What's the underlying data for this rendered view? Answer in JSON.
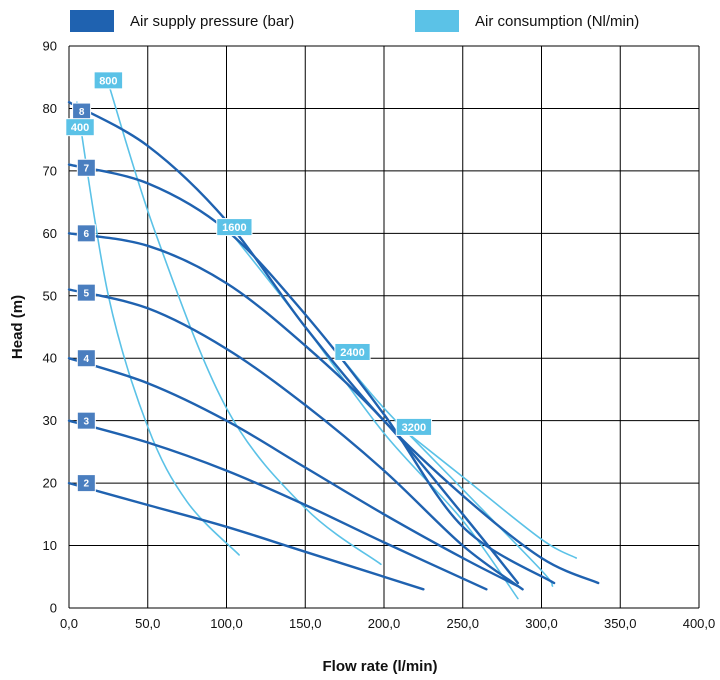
{
  "legend": {
    "pressure_label": "Air supply pressure (bar)",
    "consumption_label": "Air consumption (Nl/min)"
  },
  "colors": {
    "pressure": "#1f62b0",
    "consumption": "#5bc2e7",
    "pressure_tag": "#4a7ebf",
    "grid": "#000000"
  },
  "chart_data": {
    "type": "line",
    "xlabel": "Flow rate (l/min)",
    "ylabel": "Head (m)",
    "xlim": [
      0,
      400
    ],
    "ylim": [
      0,
      90
    ],
    "xticks": [
      0,
      50,
      100,
      150,
      200,
      250,
      300,
      350,
      400
    ],
    "xtick_labels": [
      "0,0",
      "50,0",
      "100,0",
      "150,0",
      "200,0",
      "250,0",
      "300,0",
      "350,0",
      "400,0"
    ],
    "yticks": [
      0,
      10,
      20,
      30,
      40,
      50,
      60,
      70,
      80,
      90
    ],
    "ytick_labels": [
      "0",
      "10",
      "20",
      "30",
      "40",
      "50",
      "60",
      "70",
      "80",
      "90"
    ],
    "grid": true,
    "legend_position": "top",
    "pressure_series": [
      {
        "label": "2",
        "points": [
          [
            0,
            20
          ],
          [
            50,
            16.5
          ],
          [
            100,
            13
          ],
          [
            150,
            9
          ],
          [
            225,
            3
          ]
        ]
      },
      {
        "label": "3",
        "points": [
          [
            0,
            30
          ],
          [
            50,
            26.5
          ],
          [
            100,
            22
          ],
          [
            150,
            16.5
          ],
          [
            200,
            10.5
          ],
          [
            265,
            3
          ]
        ]
      },
      {
        "label": "4",
        "points": [
          [
            0,
            40
          ],
          [
            50,
            36
          ],
          [
            100,
            30
          ],
          [
            150,
            22.5
          ],
          [
            200,
            15
          ],
          [
            250,
            8
          ],
          [
            285,
            3.5
          ]
        ]
      },
      {
        "label": "5",
        "points": [
          [
            0,
            51
          ],
          [
            50,
            48
          ],
          [
            100,
            41.5
          ],
          [
            150,
            32.5
          ],
          [
            200,
            22
          ],
          [
            250,
            10
          ],
          [
            288,
            3
          ]
        ]
      },
      {
        "label": "6",
        "points": [
          [
            0,
            60
          ],
          [
            50,
            58
          ],
          [
            100,
            52
          ],
          [
            150,
            42
          ],
          [
            200,
            30
          ],
          [
            250,
            15
          ],
          [
            285,
            4
          ]
        ]
      },
      {
        "label": "7",
        "points": [
          [
            0,
            71
          ],
          [
            50,
            68
          ],
          [
            100,
            60.5
          ],
          [
            150,
            47
          ],
          [
            200,
            31
          ],
          [
            250,
            13
          ],
          [
            308,
            4
          ]
        ]
      },
      {
        "label": "8",
        "points": [
          [
            0,
            81
          ],
          [
            50,
            74
          ],
          [
            100,
            62
          ],
          [
            150,
            45
          ],
          [
            200,
            30
          ],
          [
            250,
            18
          ],
          [
            300,
            8
          ],
          [
            336,
            4
          ]
        ]
      }
    ],
    "consumption_series": [
      {
        "label": "400",
        "points": [
          [
            5,
            81
          ],
          [
            25,
            50
          ],
          [
            50,
            29
          ],
          [
            75,
            17
          ],
          [
            108,
            8.5
          ]
        ]
      },
      {
        "label": "800",
        "points": [
          [
            25,
            84
          ],
          [
            55,
            60
          ],
          [
            100,
            32
          ],
          [
            150,
            16
          ],
          [
            198,
            7
          ]
        ]
      },
      {
        "label": "1600",
        "points": [
          [
            100,
            61
          ],
          [
            150,
            45
          ],
          [
            200,
            28
          ],
          [
            250,
            14
          ],
          [
            285,
            1.5
          ]
        ]
      },
      {
        "label": "2400",
        "points": [
          [
            170,
            41
          ],
          [
            200,
            32
          ],
          [
            250,
            19
          ],
          [
            300,
            6
          ],
          [
            307,
            3.5
          ]
        ]
      },
      {
        "label": "3200",
        "points": [
          [
            210,
            29
          ],
          [
            250,
            21
          ],
          [
            300,
            11
          ],
          [
            322,
            8
          ]
        ]
      }
    ],
    "pressure_tags": [
      {
        "label": "2",
        "x": 11,
        "y": 20
      },
      {
        "label": "3",
        "x": 11,
        "y": 30
      },
      {
        "label": "4",
        "x": 11,
        "y": 40
      },
      {
        "label": "5",
        "x": 11,
        "y": 50.5
      },
      {
        "label": "6",
        "x": 11,
        "y": 60
      },
      {
        "label": "7",
        "x": 11,
        "y": 70.5
      },
      {
        "label": "8",
        "x": 8,
        "y": 79.5
      }
    ],
    "consumption_tags": [
      {
        "label": "400",
        "x": 7,
        "y": 77
      },
      {
        "label": "800",
        "x": 25,
        "y": 84.5
      },
      {
        "label": "1600",
        "x": 105,
        "y": 61
      },
      {
        "label": "2400",
        "x": 180,
        "y": 41
      },
      {
        "label": "3200",
        "x": 219,
        "y": 29
      }
    ]
  }
}
